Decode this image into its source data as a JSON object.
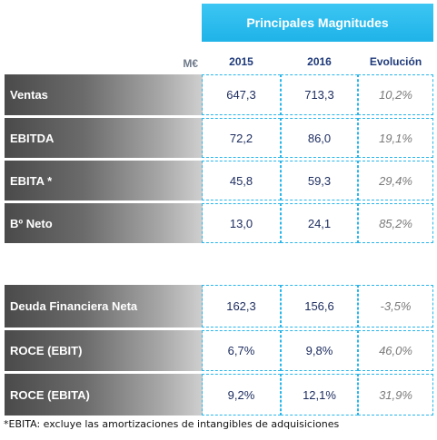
{
  "header": {
    "title": "Principales Magnitudes",
    "unit": "M€",
    "columns": [
      "2015",
      "2016",
      "Evolución"
    ]
  },
  "rows": [
    {
      "label": "Ventas",
      "v2015": "647,3",
      "v2016": "713,3",
      "evolucion": "10,2%"
    },
    {
      "label": "EBITDA",
      "v2015": "72,2",
      "v2016": "86,0",
      "evolucion": "19,1%"
    },
    {
      "label": "EBITA *",
      "v2015": "45,8",
      "v2016": "59,3",
      "evolucion": "29,4%"
    },
    {
      "label": "Bº Neto",
      "v2015": "13,0",
      "v2016": "24,1",
      "evolucion": "85,2%"
    },
    {
      "label": "Deuda Financiera Neta",
      "v2015": "162,3",
      "v2016": "156,6",
      "evolucion": "-3,5%"
    },
    {
      "label": "ROCE (EBIT)",
      "v2015": "6,7%",
      "v2016": "9,8%",
      "evolucion": "46,0%"
    },
    {
      "label": "ROCE (EBITA)",
      "v2015": "9,2%",
      "v2016": "12,1%",
      "evolucion": "31,9%"
    }
  ],
  "footnote": "*EBITA: excluye las amortizaciones de intangibles de adquisiciones"
}
